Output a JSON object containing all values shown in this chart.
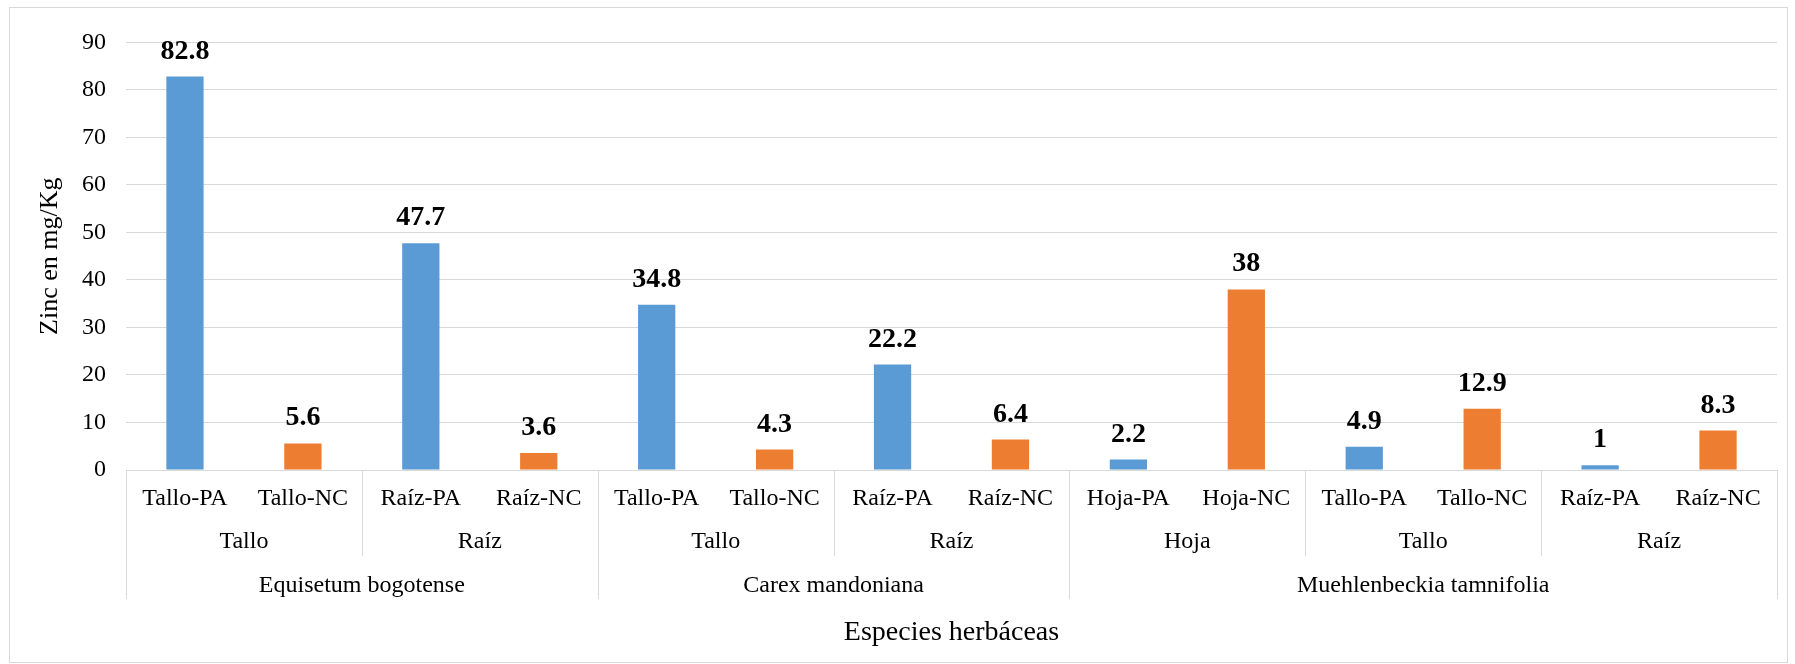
{
  "chart_data": {
    "type": "bar",
    "xlabel": "Especies herbáceas",
    "ylabel": "Zinc en mg/Kg",
    "categories": [
      "Tallo-PA",
      "Tallo-NC",
      "Raíz-PA",
      "Raíz-NC",
      "Tallo-PA",
      "Tallo-NC",
      "Raíz-PA",
      "Raíz-NC",
      "Hoja-PA",
      "Hoja-NC",
      "Tallo-PA",
      "Tallo-NC",
      "Raíz-PA",
      "Raíz-NC"
    ],
    "values": [
      82.8,
      5.6,
      47.7,
      3.6,
      34.8,
      4.3,
      22.2,
      6.4,
      2.2,
      38,
      4.9,
      12.9,
      1,
      8.3
    ],
    "colors": [
      "#5b9bd5",
      "#ed7d31",
      "#5b9bd5",
      "#ed7d31",
      "#5b9bd5",
      "#ed7d31",
      "#5b9bd5",
      "#ed7d31",
      "#5b9bd5",
      "#ed7d31",
      "#5b9bd5",
      "#ed7d31",
      "#5b9bd5",
      "#ed7d31"
    ],
    "ylim": [
      0,
      90
    ],
    "yticks": [
      0,
      10,
      20,
      30,
      40,
      50,
      60,
      70,
      80,
      90
    ],
    "grid": "y",
    "data_labels": true,
    "annotations": [
      "Tallo",
      "Raíz",
      "Tallo",
      "Raíz",
      "Hoja",
      "Tallo",
      "Raíz",
      "Equisetum bogotense",
      "Carex mandoniana",
      "Muehlenbeckia tamnifolia"
    ]
  }
}
